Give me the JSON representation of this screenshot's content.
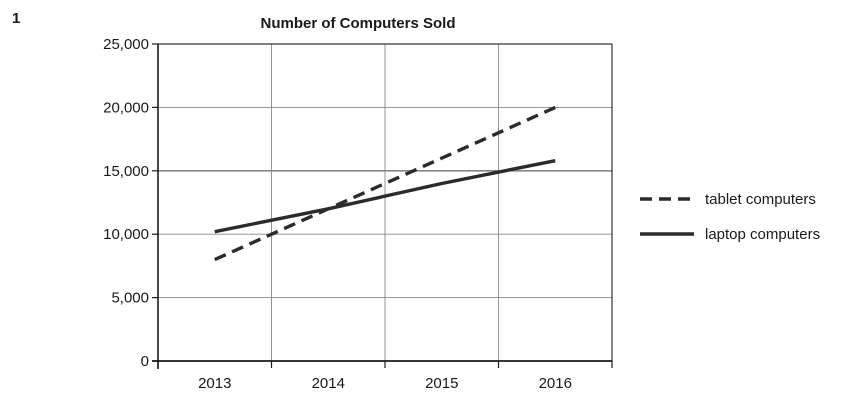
{
  "question_number": "1",
  "chart_data": {
    "type": "line",
    "title": "Number of Computers Sold",
    "xlabel": "",
    "ylabel": "",
    "categories": [
      "2013",
      "2014",
      "2015",
      "2016"
    ],
    "ylim": [
      0,
      25000
    ],
    "yticks": [
      0,
      5000,
      10000,
      15000,
      20000,
      25000
    ],
    "ytick_labels": [
      "0",
      "5,000",
      "10,000",
      "15,000",
      "20,000",
      "25,000"
    ],
    "grid": true,
    "legend_position": "right",
    "series": [
      {
        "name": "tablet computers",
        "style": "dashed",
        "values": [
          8000,
          12000,
          16000,
          20000
        ]
      },
      {
        "name": "laptop computers",
        "style": "solid",
        "values": [
          10200,
          12000,
          14000,
          15800
        ]
      }
    ],
    "line_color": "#2b2b2b",
    "grid_color": "#888888"
  }
}
